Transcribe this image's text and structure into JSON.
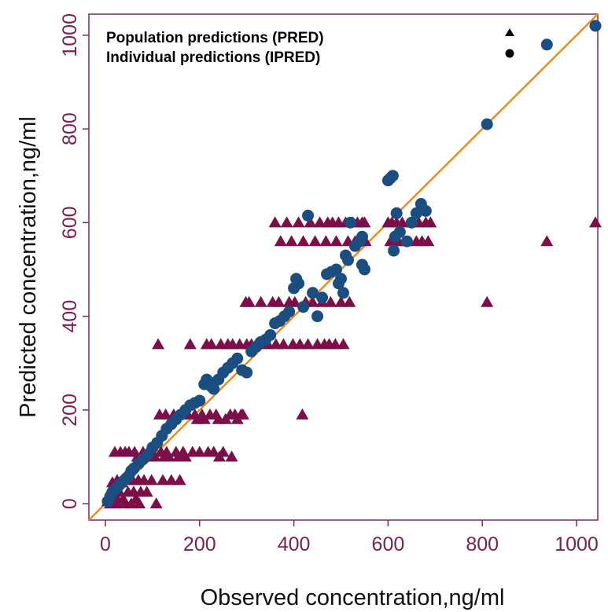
{
  "chart_data": {
    "type": "scatter",
    "title": "",
    "xlabel": "Observed concentration,ng/ml",
    "ylabel": "Predicted concentration,ng/ml",
    "xlim": [
      -35,
      1045
    ],
    "ylim": [
      -35,
      1045
    ],
    "xticks": [
      0,
      200,
      400,
      600,
      800,
      1000
    ],
    "yticks": [
      0,
      200,
      400,
      600,
      800,
      1000
    ],
    "xtick_labels": [
      "0",
      "200",
      "400",
      "600",
      "800",
      "1000"
    ],
    "ytick_labels": [
      "0",
      "200",
      "400",
      "600",
      "800",
      "1000"
    ],
    "grid": false,
    "legend_position": "top",
    "identity_line": {
      "from": [
        -35,
        -35
      ],
      "to": [
        1045,
        1045
      ],
      "color": "#f08a1c"
    },
    "colors": {
      "frame": "#7a2a5b",
      "tick_label": "#7a1f4e",
      "pred": "#7c0f48",
      "ipred": "#1b4e80",
      "line": "#f08a1c"
    },
    "series": [
      {
        "name": "Population predictions (PRED)",
        "marker": "triangle",
        "color": "#7c0f48",
        "points": [
          [
            5,
            5
          ],
          [
            8,
            15
          ],
          [
            10,
            0
          ],
          [
            12,
            30
          ],
          [
            15,
            45
          ],
          [
            18,
            20
          ],
          [
            20,
            110
          ],
          [
            22,
            0
          ],
          [
            25,
            50
          ],
          [
            28,
            5
          ],
          [
            30,
            25
          ],
          [
            32,
            110
          ],
          [
            35,
            45
          ],
          [
            38,
            10
          ],
          [
            40,
            0
          ],
          [
            42,
            110
          ],
          [
            45,
            50
          ],
          [
            48,
            25
          ],
          [
            50,
            110
          ],
          [
            55,
            0
          ],
          [
            58,
            50
          ],
          [
            60,
            25
          ],
          [
            62,
            110
          ],
          [
            65,
            10
          ],
          [
            68,
            100
          ],
          [
            70,
            50
          ],
          [
            72,
            0
          ],
          [
            75,
            25
          ],
          [
            78,
            100
          ],
          [
            80,
            110
          ],
          [
            82,
            50
          ],
          [
            85,
            100
          ],
          [
            88,
            25
          ],
          [
            90,
            110
          ],
          [
            95,
            100
          ],
          [
            98,
            50
          ],
          [
            100,
            110
          ],
          [
            105,
            100
          ],
          [
            108,
            0
          ],
          [
            112,
            340
          ],
          [
            115,
            190
          ],
          [
            118,
            110
          ],
          [
            122,
            50
          ],
          [
            125,
            100
          ],
          [
            128,
            190
          ],
          [
            130,
            110
          ],
          [
            135,
            100
          ],
          [
            140,
            50
          ],
          [
            145,
            190
          ],
          [
            150,
            110
          ],
          [
            155,
            100
          ],
          [
            158,
            50
          ],
          [
            160,
            190
          ],
          [
            165,
            110
          ],
          [
            170,
            100
          ],
          [
            175,
            190
          ],
          [
            180,
            340
          ],
          [
            185,
            110
          ],
          [
            190,
            190
          ],
          [
            195,
            180
          ],
          [
            200,
            110
          ],
          [
            205,
            190
          ],
          [
            210,
            180
          ],
          [
            215,
            340
          ],
          [
            218,
            110
          ],
          [
            222,
            190
          ],
          [
            225,
            340
          ],
          [
            230,
            110
          ],
          [
            235,
            190
          ],
          [
            240,
            180
          ],
          [
            242,
            100
          ],
          [
            245,
            340
          ],
          [
            250,
            110
          ],
          [
            255,
            180
          ],
          [
            260,
            340
          ],
          [
            265,
            190
          ],
          [
            268,
            100
          ],
          [
            270,
            340
          ],
          [
            275,
            190
          ],
          [
            280,
            180
          ],
          [
            285,
            340
          ],
          [
            288,
            190
          ],
          [
            292,
            190
          ],
          [
            298,
            430
          ],
          [
            300,
            340
          ],
          [
            305,
            430
          ],
          [
            310,
            340
          ],
          [
            320,
            340
          ],
          [
            330,
            430
          ],
          [
            345,
            340
          ],
          [
            355,
            430
          ],
          [
            360,
            600
          ],
          [
            362,
            340
          ],
          [
            368,
            430
          ],
          [
            372,
            560
          ],
          [
            378,
            340
          ],
          [
            385,
            600
          ],
          [
            390,
            430
          ],
          [
            395,
            560
          ],
          [
            398,
            340
          ],
          [
            402,
            430
          ],
          [
            410,
            600
          ],
          [
            413,
            340
          ],
          [
            418,
            190
          ],
          [
            420,
            560
          ],
          [
            425,
            430
          ],
          [
            430,
            340
          ],
          [
            435,
            600
          ],
          [
            440,
            430
          ],
          [
            445,
            560
          ],
          [
            450,
            340
          ],
          [
            455,
            600
          ],
          [
            460,
            430
          ],
          [
            465,
            340
          ],
          [
            468,
            560
          ],
          [
            472,
            600
          ],
          [
            475,
            340
          ],
          [
            478,
            430
          ],
          [
            482,
            600
          ],
          [
            488,
            340
          ],
          [
            490,
            560
          ],
          [
            495,
            600
          ],
          [
            500,
            430
          ],
          [
            505,
            340
          ],
          [
            510,
            600
          ],
          [
            515,
            560
          ],
          [
            518,
            430
          ],
          [
            525,
            600
          ],
          [
            530,
            560
          ],
          [
            535,
            600
          ],
          [
            540,
            560
          ],
          [
            545,
            600
          ],
          [
            550,
            600
          ],
          [
            552,
            560
          ],
          [
            600,
            600
          ],
          [
            605,
            560
          ],
          [
            608,
            600
          ],
          [
            612,
            560
          ],
          [
            618,
            600
          ],
          [
            622,
            560
          ],
          [
            630,
            600
          ],
          [
            640,
            560
          ],
          [
            650,
            600
          ],
          [
            660,
            560
          ],
          [
            665,
            600
          ],
          [
            672,
            560
          ],
          [
            680,
            600
          ],
          [
            685,
            560
          ],
          [
            690,
            600
          ],
          [
            810,
            430
          ],
          [
            937,
            560
          ],
          [
            1040,
            600
          ]
        ]
      },
      {
        "name": "Individual predictions (IPRED)",
        "marker": "circle",
        "color": "#1b4e80",
        "points": [
          [
            5,
            5
          ],
          [
            10,
            15
          ],
          [
            15,
            25
          ],
          [
            20,
            30
          ],
          [
            25,
            35
          ],
          [
            30,
            40
          ],
          [
            35,
            45
          ],
          [
            40,
            50
          ],
          [
            45,
            55
          ],
          [
            50,
            60
          ],
          [
            55,
            70
          ],
          [
            60,
            75
          ],
          [
            70,
            85
          ],
          [
            80,
            95
          ],
          [
            90,
            105
          ],
          [
            100,
            120
          ],
          [
            110,
            130
          ],
          [
            120,
            145
          ],
          [
            130,
            160
          ],
          [
            140,
            170
          ],
          [
            150,
            180
          ],
          [
            160,
            190
          ],
          [
            170,
            200
          ],
          [
            180,
            210
          ],
          [
            190,
            215
          ],
          [
            200,
            220
          ],
          [
            210,
            255
          ],
          [
            215,
            265
          ],
          [
            220,
            260
          ],
          [
            225,
            250
          ],
          [
            230,
            245
          ],
          [
            240,
            265
          ],
          [
            250,
            280
          ],
          [
            260,
            290
          ],
          [
            270,
            300
          ],
          [
            280,
            310
          ],
          [
            290,
            285
          ],
          [
            300,
            280
          ],
          [
            310,
            325
          ],
          [
            320,
            335
          ],
          [
            330,
            345
          ],
          [
            340,
            350
          ],
          [
            350,
            360
          ],
          [
            360,
            385
          ],
          [
            370,
            390
          ],
          [
            380,
            400
          ],
          [
            390,
            410
          ],
          [
            400,
            460
          ],
          [
            405,
            480
          ],
          [
            410,
            470
          ],
          [
            420,
            420
          ],
          [
            430,
            615
          ],
          [
            440,
            450
          ],
          [
            450,
            400
          ],
          [
            460,
            440
          ],
          [
            470,
            490
          ],
          [
            480,
            495
          ],
          [
            490,
            500
          ],
          [
            495,
            470
          ],
          [
            500,
            480
          ],
          [
            505,
            450
          ],
          [
            510,
            530
          ],
          [
            515,
            520
          ],
          [
            520,
            600
          ],
          [
            530,
            550
          ],
          [
            540,
            560
          ],
          [
            545,
            570
          ],
          [
            550,
            500
          ],
          [
            545,
            510
          ],
          [
            600,
            690
          ],
          [
            605,
            695
          ],
          [
            610,
            700
          ],
          [
            612,
            540
          ],
          [
            615,
            570
          ],
          [
            618,
            620
          ],
          [
            625,
            580
          ],
          [
            640,
            560
          ],
          [
            650,
            600
          ],
          [
            660,
            620
          ],
          [
            670,
            640
          ],
          [
            680,
            625
          ],
          [
            810,
            810
          ],
          [
            937,
            980
          ],
          [
            1040,
            1020
          ]
        ]
      }
    ]
  }
}
